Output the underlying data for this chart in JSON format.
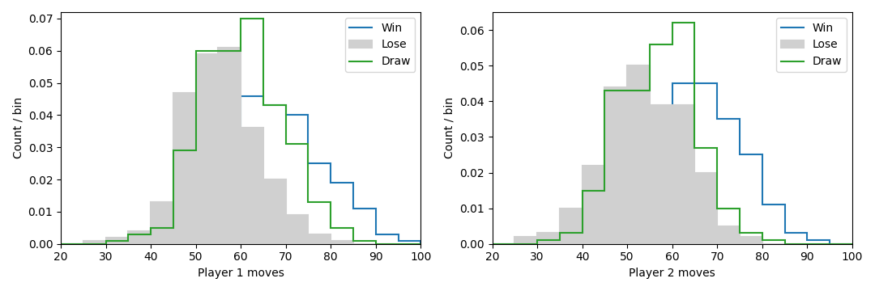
{
  "xlim": [
    20,
    100
  ],
  "ylim1": [
    0,
    0.072
  ],
  "ylim2": [
    0,
    0.065
  ],
  "xlabel1": "Player 1 moves",
  "xlabel2": "Player 2 moves",
  "ylabel": "Count / bin",
  "bins": [
    20,
    25,
    30,
    35,
    40,
    45,
    50,
    55,
    60,
    65,
    70,
    75,
    80,
    85,
    90,
    95,
    100
  ],
  "p1_win": [
    0.0,
    0.0,
    0.0,
    0.001,
    0.005,
    0.01,
    0.021,
    0.029,
    0.046,
    0.043,
    0.04,
    0.025,
    0.019,
    0.011,
    0.003,
    0.001
  ],
  "p1_lose": [
    0.0,
    0.001,
    0.002,
    0.004,
    0.013,
    0.047,
    0.059,
    0.061,
    0.036,
    0.02,
    0.009,
    0.003,
    0.001,
    0.0,
    0.0,
    0.0
  ],
  "p1_draw": [
    0.0,
    0.0,
    0.001,
    0.003,
    0.005,
    0.029,
    0.06,
    0.06,
    0.07,
    0.043,
    0.031,
    0.013,
    0.005,
    0.001,
    0.0,
    0.0
  ],
  "p2_win": [
    0.0,
    0.0,
    0.001,
    0.001,
    0.008,
    0.011,
    0.019,
    0.033,
    0.045,
    0.045,
    0.035,
    0.025,
    0.011,
    0.003,
    0.001,
    0.0
  ],
  "p2_lose": [
    0.0,
    0.002,
    0.003,
    0.01,
    0.022,
    0.044,
    0.05,
    0.039,
    0.039,
    0.02,
    0.005,
    0.002,
    0.0,
    0.0,
    0.0,
    0.0
  ],
  "p2_draw": [
    0.0,
    0.0,
    0.001,
    0.003,
    0.015,
    0.043,
    0.043,
    0.056,
    0.062,
    0.027,
    0.01,
    0.003,
    0.001,
    0.0,
    0.0,
    0.0
  ],
  "win_color": "#1f77b4",
  "lose_color": "#ff7f0e",
  "draw_color": "#2ca02c",
  "lose_legend_color": "#d0d0d0",
  "legend_labels": [
    "Win",
    "Lose",
    "Draw"
  ]
}
